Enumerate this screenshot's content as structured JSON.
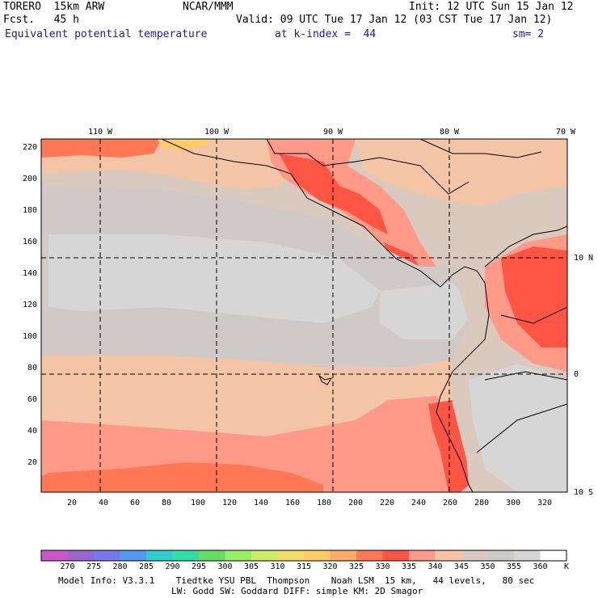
{
  "header": {
    "model": "TORERO  15km ARW",
    "org": "NCAR/MMM",
    "init": "Init: 12 UTC Sun 15 Jan 12",
    "fcst": "Fcst.   45 h",
    "valid": "Valid: 09 UTC Tue 17 Jan 12 (03 CST Tue 17 Jan 12)",
    "field": "Equivalent potential temperature",
    "level": "at k-index =  44",
    "smooth": "sm= 2"
  },
  "map": {
    "lon_labels": [
      "110 W",
      "100 W",
      "90 W",
      "80 W",
      "70 W"
    ],
    "lat_labels": [
      "10 N",
      "0",
      "10 S"
    ],
    "y_ticks": [
      "220",
      "200",
      "180",
      "160",
      "140",
      "120",
      "100",
      "80",
      "60",
      "40",
      "20"
    ],
    "x_ticks": [
      "20",
      "40",
      "60",
      "80",
      "100",
      "120",
      "140",
      "160",
      "180",
      "200",
      "220",
      "240",
      "260",
      "280",
      "300",
      "320"
    ]
  },
  "colorbar": {
    "unit": "K",
    "labels": [
      "270",
      "275",
      "280",
      "285",
      "290",
      "295",
      "300",
      "305",
      "310",
      "315",
      "320",
      "325",
      "330",
      "335",
      "340",
      "345",
      "350",
      "355",
      "360"
    ],
    "colors": [
      "#cc55cc",
      "#9966cc",
      "#7777ee",
      "#5599ee",
      "#33cccc",
      "#33ddaa",
      "#66dd66",
      "#99ee66",
      "#ccee66",
      "#eedd66",
      "#ffcc66",
      "#ffaa66",
      "#ff7755",
      "#ff5544",
      "#ff9988",
      "#f3c4a6",
      "#d9c9bf",
      "#cfcac8",
      "#d6d6d6",
      "#ffffff"
    ]
  },
  "footer": {
    "line1": "Model Info: V3.3.1    Tiedtke YSU PBL  Thompson    Noah LSM  15 km,   44 levels,   80 sec",
    "line2": "LW: Godd SW: Goddard DIFF: simple KM: 2D Smagor"
  }
}
